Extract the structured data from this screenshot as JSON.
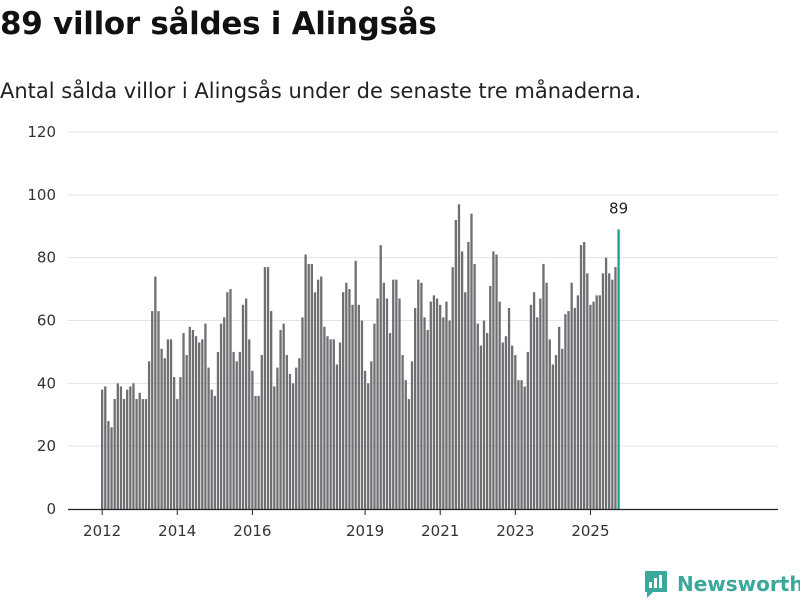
{
  "title": "89 villor såldes i Alingsås",
  "subtitle": "Antal sålda villor i Alingsås under de senaste tre månaderna.",
  "brand": "Newsworthy",
  "colors": {
    "bar": "#6f6e73",
    "highlight": "#1f9e8e",
    "brand": "#3aa89b"
  },
  "chart_data": {
    "type": "bar",
    "title": "89 villor såldes i Alingsås",
    "xlabel": "",
    "ylabel": "",
    "ylim": [
      0,
      120
    ],
    "yticks": [
      0,
      20,
      40,
      60,
      80,
      100,
      120
    ],
    "grid": true,
    "x_start": 2012.0,
    "x_step": 0.08333,
    "xticks": [
      {
        "label": "2012",
        "value": 2012.0
      },
      {
        "label": "2014",
        "value": 2014.0
      },
      {
        "label": "2016",
        "value": 2016.0
      },
      {
        "label": "2019",
        "value": 2019.0
      },
      {
        "label": "2021",
        "value": 2021.0
      },
      {
        "label": "2023",
        "value": 2023.0
      },
      {
        "label": "2025",
        "value": 2025.0
      }
    ],
    "values": [
      38,
      39,
      28,
      26,
      35,
      40,
      39,
      35,
      38,
      39,
      40,
      35,
      37,
      35,
      35,
      47,
      63,
      74,
      63,
      51,
      48,
      54,
      54,
      42,
      35,
      42,
      56,
      49,
      58,
      57,
      55,
      53,
      54,
      59,
      45,
      38,
      36,
      50,
      59,
      61,
      69,
      70,
      50,
      47,
      50,
      65,
      67,
      54,
      44,
      36,
      36,
      49,
      77,
      77,
      63,
      39,
      45,
      57,
      59,
      49,
      43,
      40,
      45,
      48,
      61,
      81,
      78,
      78,
      69,
      73,
      74,
      58,
      55,
      54,
      54,
      46,
      53,
      69,
      72,
      70,
      65,
      79,
      65,
      60,
      44,
      40,
      47,
      59,
      67,
      84,
      72,
      67,
      56,
      73,
      73,
      67,
      49,
      41,
      35,
      47,
      64,
      73,
      72,
      61,
      57,
      66,
      68,
      67,
      65,
      61,
      66,
      60,
      77,
      92,
      97,
      82,
      69,
      85,
      94,
      78,
      59,
      52,
      60,
      56,
      71,
      82,
      81,
      66,
      53,
      55,
      64,
      52,
      49,
      41,
      41,
      39,
      50,
      65,
      69,
      61,
      67,
      78,
      72,
      54,
      46,
      49,
      58,
      51,
      62,
      63,
      72,
      64,
      68,
      84,
      85,
      75,
      65,
      66,
      68,
      68,
      75,
      80,
      75,
      73,
      77,
      89
    ],
    "highlight_value": 89,
    "highlight_label": "89"
  }
}
